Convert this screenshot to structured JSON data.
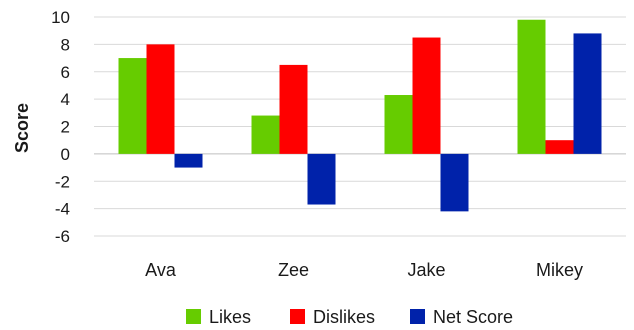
{
  "chart_data": {
    "type": "bar",
    "categories": [
      "Ava",
      "Zee",
      "Jake",
      "Mikey"
    ],
    "series": [
      {
        "name": "Likes",
        "color": "#66cc00",
        "values": [
          7.0,
          2.8,
          4.3,
          9.8
        ]
      },
      {
        "name": "Dislikes",
        "color": "#ff0000",
        "values": [
          8.0,
          6.5,
          8.5,
          1.0
        ]
      },
      {
        "name": "Net Score",
        "color": "#0022aa",
        "values": [
          -1.0,
          -3.7,
          -4.2,
          8.8
        ]
      }
    ],
    "ylabel": "Score",
    "ylim": [
      -6,
      10
    ],
    "yticks": [
      -6,
      -4,
      -2,
      0,
      2,
      4,
      6,
      8,
      10
    ],
    "grid": true,
    "legend_position": "bottom"
  }
}
